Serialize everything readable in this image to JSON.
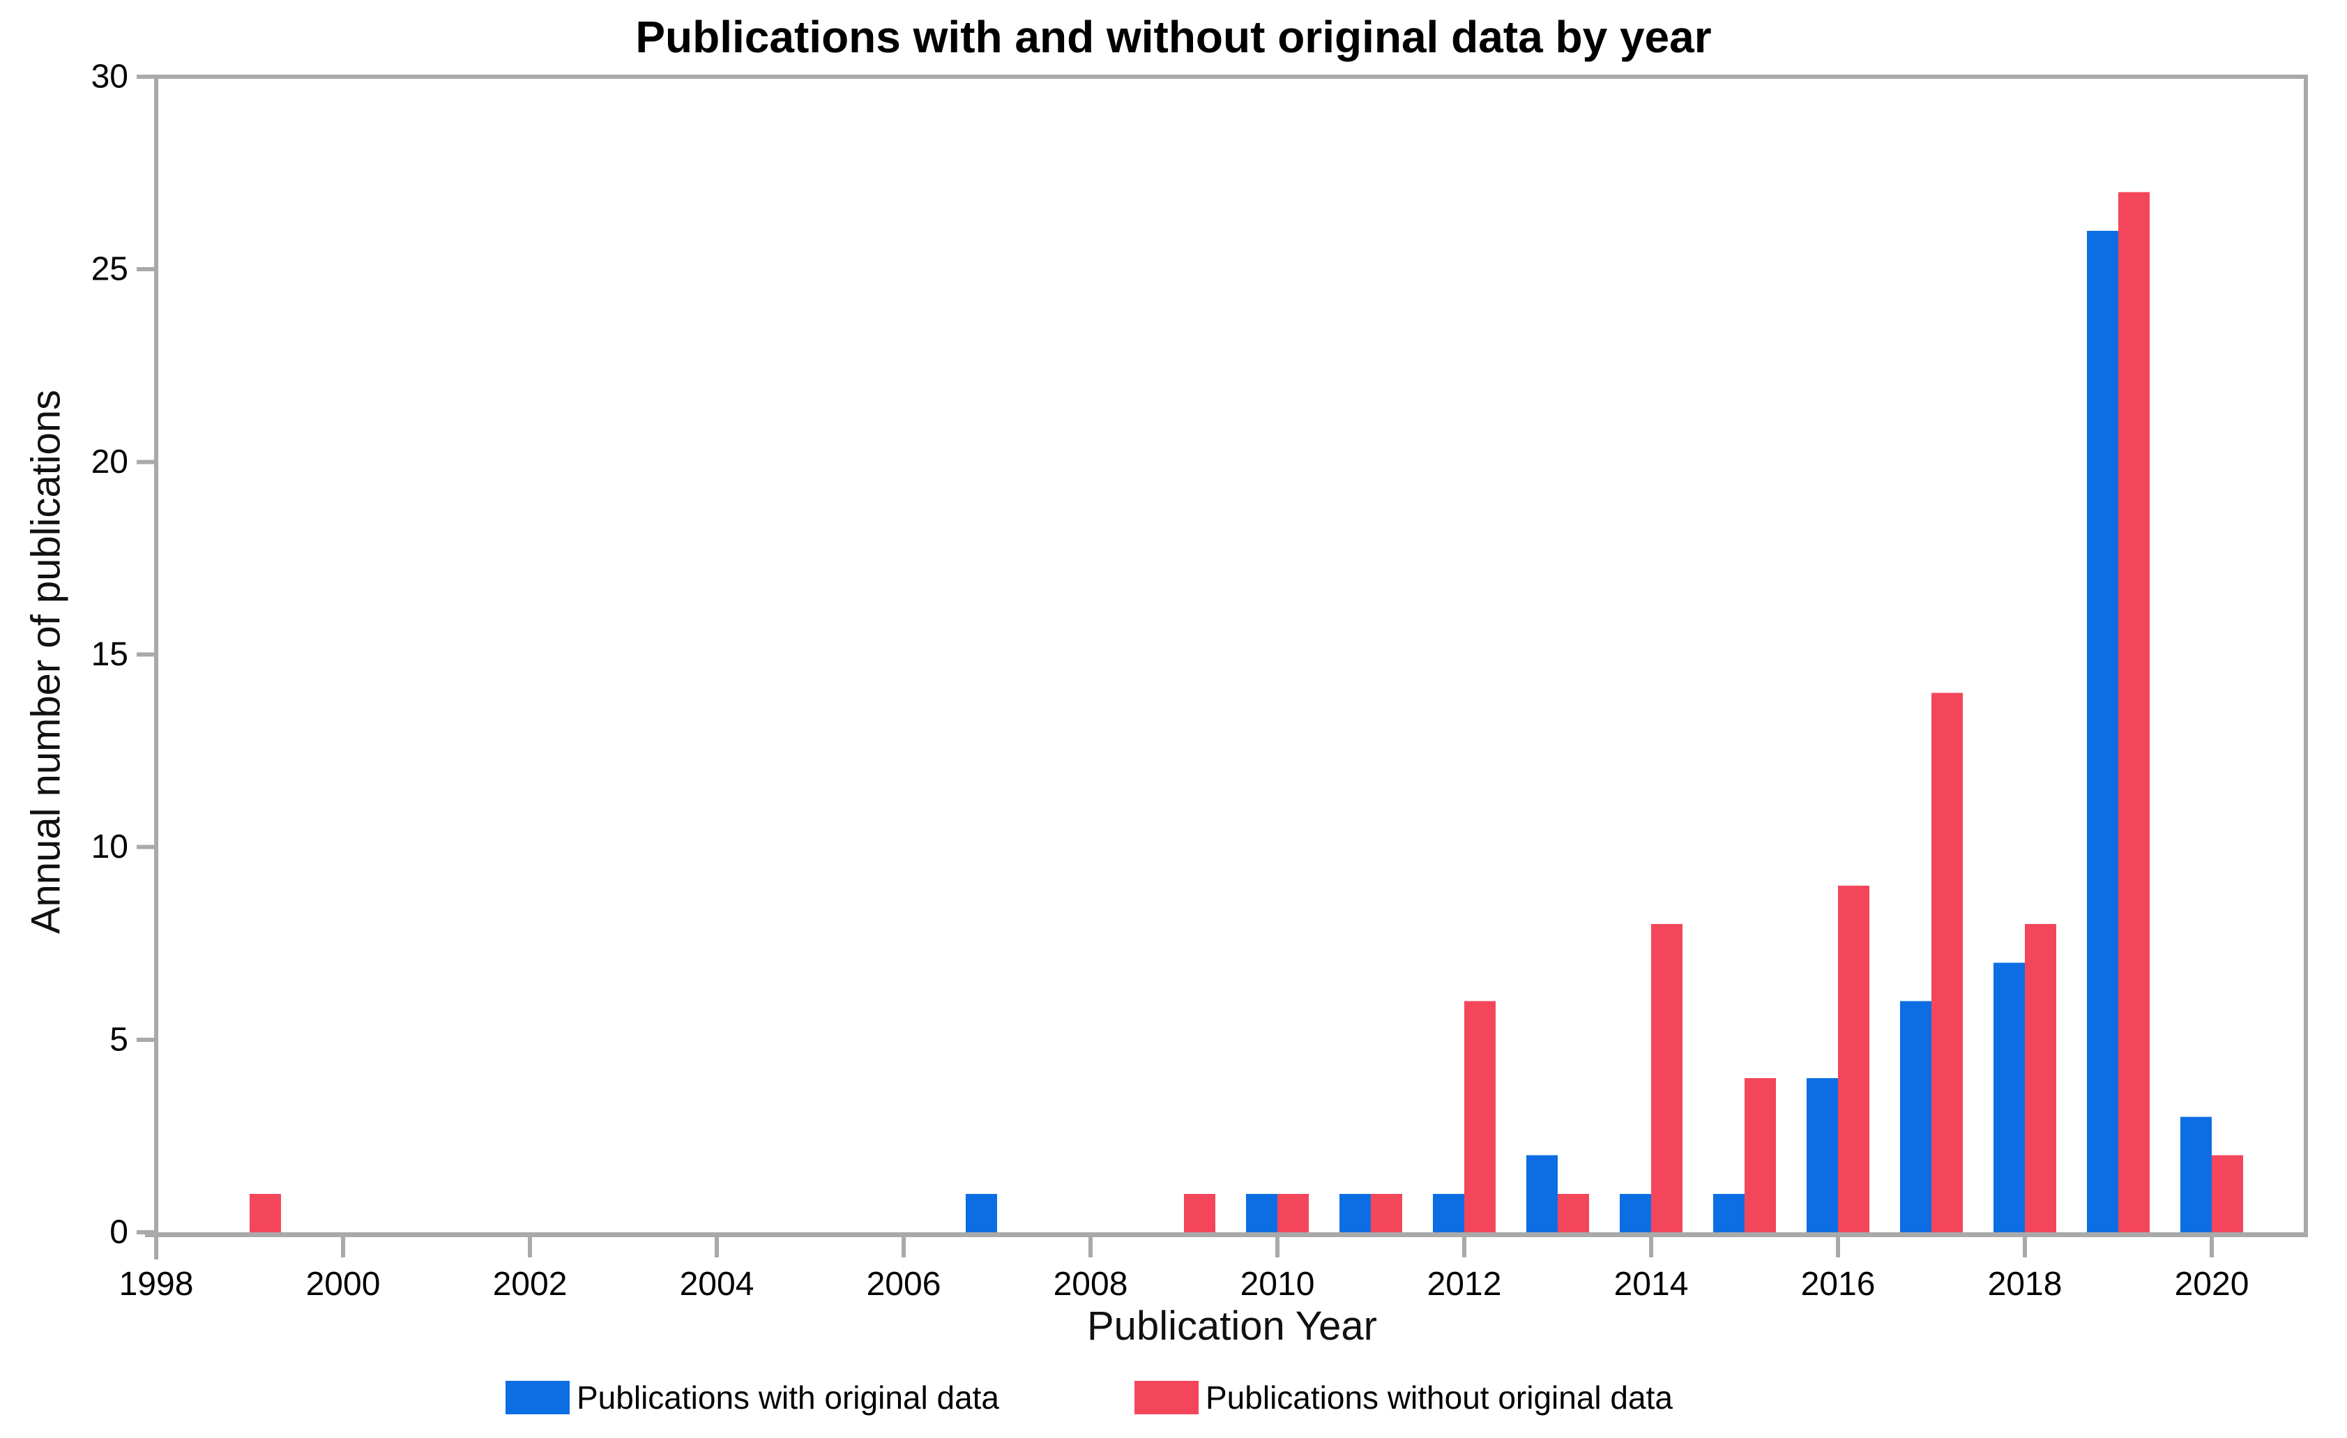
{
  "title": "Publications with and without original data by year",
  "chart_data": {
    "type": "bar",
    "grouped": true,
    "title": "Publications with and without original data by year",
    "xlabel": "Publication Year",
    "ylabel": "Annual number of publications",
    "categories": [
      1998,
      1999,
      2000,
      2001,
      2002,
      2003,
      2004,
      2005,
      2006,
      2007,
      2008,
      2009,
      2010,
      2011,
      2012,
      2013,
      2014,
      2015,
      2016,
      2017,
      2018,
      2019,
      2020
    ],
    "series": [
      {
        "name": "Publications with original data",
        "color": "#0D6EE4",
        "values": [
          0,
          0,
          0,
          0,
          0,
          0,
          0,
          0,
          0,
          1,
          0,
          0,
          1,
          1,
          1,
          2,
          1,
          1,
          4,
          6,
          7,
          26,
          3
        ]
      },
      {
        "name": "Publications without original data",
        "color": "#F4465A",
        "values": [
          0,
          1,
          0,
          0,
          0,
          0,
          0,
          0,
          0,
          0,
          0,
          1,
          1,
          1,
          6,
          1,
          8,
          4,
          9,
          14,
          8,
          27,
          2
        ]
      }
    ],
    "ylim": [
      0,
      30
    ],
    "y_ticks": [
      0,
      5,
      10,
      15,
      20,
      25,
      30
    ],
    "x_ticks": [
      1998,
      2000,
      2002,
      2004,
      2006,
      2008,
      2010,
      2012,
      2014,
      2016,
      2018,
      2020
    ],
    "grid": false,
    "legend_position": "bottom",
    "plot_frame": "boxed"
  },
  "colors": {
    "axis": "#A9A9A9",
    "tick_label": "#000000",
    "background": "#FFFFFF"
  }
}
